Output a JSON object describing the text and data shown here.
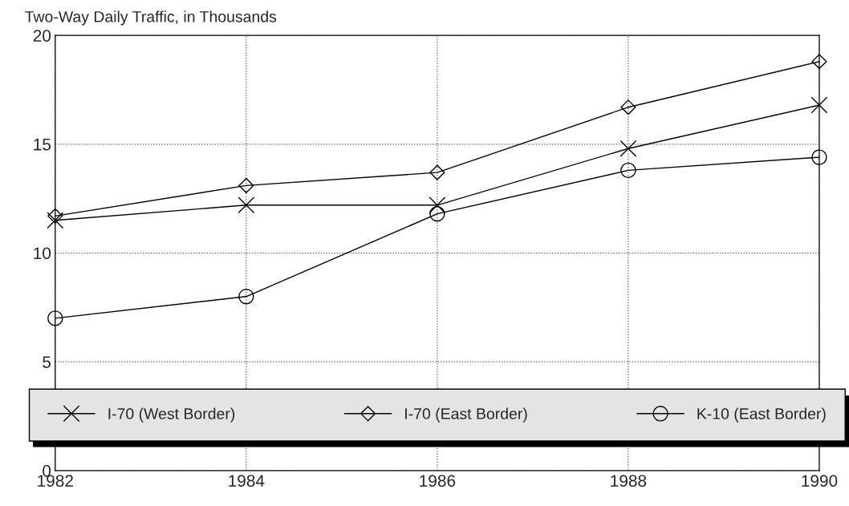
{
  "chart_data": {
    "type": "line",
    "title": "Two-Way Daily Traffic, in Thousands",
    "x": [
      1982,
      1984,
      1986,
      1988,
      1990
    ],
    "series": [
      {
        "name": "I-70 (West Border)",
        "color": "#000000",
        "marker": "cross",
        "values": [
          11.5,
          12.2,
          12.2,
          14.8,
          16.8
        ]
      },
      {
        "name": "I-70 (East Border)",
        "color": "#000000",
        "marker": "diamond",
        "values": [
          11.7,
          13.1,
          13.7,
          16.7,
          18.8
        ]
      },
      {
        "name": "K-10 (East Border)",
        "color": "#000000",
        "marker": "circle",
        "values": [
          7.0,
          8.0,
          11.8,
          13.8,
          14.4
        ]
      }
    ],
    "xlim": [
      1982,
      1990
    ],
    "xticks": [
      1982,
      1984,
      1986,
      1988,
      1990
    ],
    "ylim": [
      0,
      20
    ],
    "yticks": [
      0,
      5,
      10,
      15,
      20
    ],
    "grid": true,
    "legend": "bottom",
    "line_style": "solid"
  }
}
